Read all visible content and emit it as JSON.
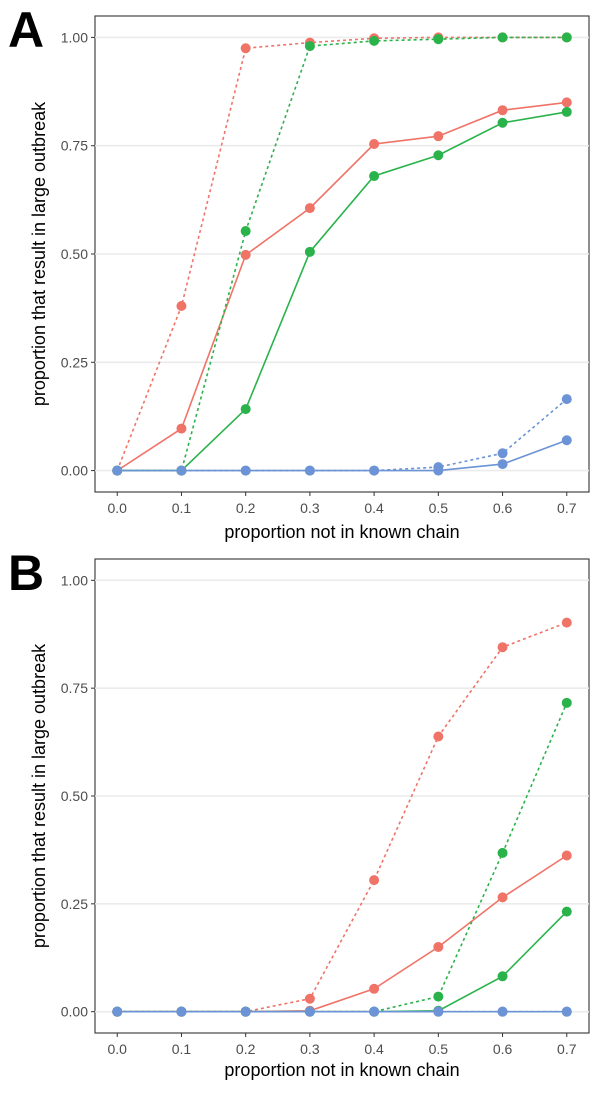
{
  "chart_data": [
    {
      "panel": "A",
      "type": "line",
      "xlabel": "proportion not in known chain",
      "ylabel": "proportion that result in large outbreak",
      "x": [
        0.0,
        0.1,
        0.2,
        0.3,
        0.4,
        0.5,
        0.6,
        0.7
      ],
      "xticks": [
        "0.0",
        "0.1",
        "0.2",
        "0.3",
        "0.4",
        "0.5",
        "0.6",
        "0.7"
      ],
      "yticks": [
        "0.00",
        "0.25",
        "0.50",
        "0.75",
        "1.00"
      ],
      "xlim": [
        0.0,
        0.7
      ],
      "ylim": [
        0.0,
        1.0
      ],
      "grid": "horizontal",
      "series": [
        {
          "color": "#F07367",
          "style": "dotted",
          "values": [
            0.0,
            0.38,
            0.975,
            0.988,
            0.998,
            1.0,
            1.0,
            1.0
          ]
        },
        {
          "color": "#F07367",
          "style": "solid",
          "values": [
            0.0,
            0.097,
            0.498,
            0.606,
            0.754,
            0.772,
            0.832,
            0.85
          ]
        },
        {
          "color": "#2AB34B",
          "style": "dotted",
          "values": [
            0.0,
            0.0,
            0.553,
            0.98,
            0.992,
            0.996,
            1.0,
            1.0
          ]
        },
        {
          "color": "#2AB34B",
          "style": "solid",
          "values": [
            0.0,
            0.0,
            0.142,
            0.505,
            0.68,
            0.728,
            0.803,
            0.828
          ]
        },
        {
          "color": "#6B93D5",
          "style": "dotted",
          "values": [
            0.0,
            0.0,
            0.0,
            0.0,
            0.0,
            0.008,
            0.04,
            0.165
          ]
        },
        {
          "color": "#6B93D5",
          "style": "solid",
          "values": [
            0.0,
            0.0,
            0.0,
            0.0,
            0.0,
            0.0,
            0.015,
            0.07
          ]
        }
      ]
    },
    {
      "panel": "B",
      "type": "line",
      "xlabel": "proportion not in known chain",
      "ylabel": "proportion that result in large outbreak",
      "x": [
        0.0,
        0.1,
        0.2,
        0.3,
        0.4,
        0.5,
        0.6,
        0.7
      ],
      "xticks": [
        "0.0",
        "0.1",
        "0.2",
        "0.3",
        "0.4",
        "0.5",
        "0.6",
        "0.7"
      ],
      "yticks": [
        "0.00",
        "0.25",
        "0.50",
        "0.75",
        "1.00"
      ],
      "xlim": [
        0.0,
        0.7
      ],
      "ylim": [
        0.0,
        1.0
      ],
      "grid": "horizontal",
      "series": [
        {
          "color": "#F07367",
          "style": "dotted",
          "values": [
            0.0,
            0.0,
            0.0,
            0.03,
            0.305,
            0.638,
            0.845,
            0.902
          ]
        },
        {
          "color": "#F07367",
          "style": "solid",
          "values": [
            0.0,
            0.0,
            0.0,
            0.002,
            0.053,
            0.15,
            0.265,
            0.362
          ]
        },
        {
          "color": "#2AB34B",
          "style": "dotted",
          "values": [
            0.0,
            0.0,
            0.0,
            0.0,
            0.0,
            0.035,
            0.368,
            0.716
          ]
        },
        {
          "color": "#2AB34B",
          "style": "solid",
          "values": [
            0.0,
            0.0,
            0.0,
            0.0,
            0.0,
            0.002,
            0.082,
            0.232
          ]
        },
        {
          "color": "#6B93D5",
          "style": "dotted",
          "values": [
            0.0,
            0.0,
            0.0,
            0.0,
            0.0,
            0.0,
            0.0,
            0.0
          ]
        },
        {
          "color": "#6B93D5",
          "style": "solid",
          "values": [
            0.0,
            0.0,
            0.0,
            0.0,
            0.0,
            0.0,
            0.0,
            0.0
          ]
        }
      ]
    }
  ]
}
